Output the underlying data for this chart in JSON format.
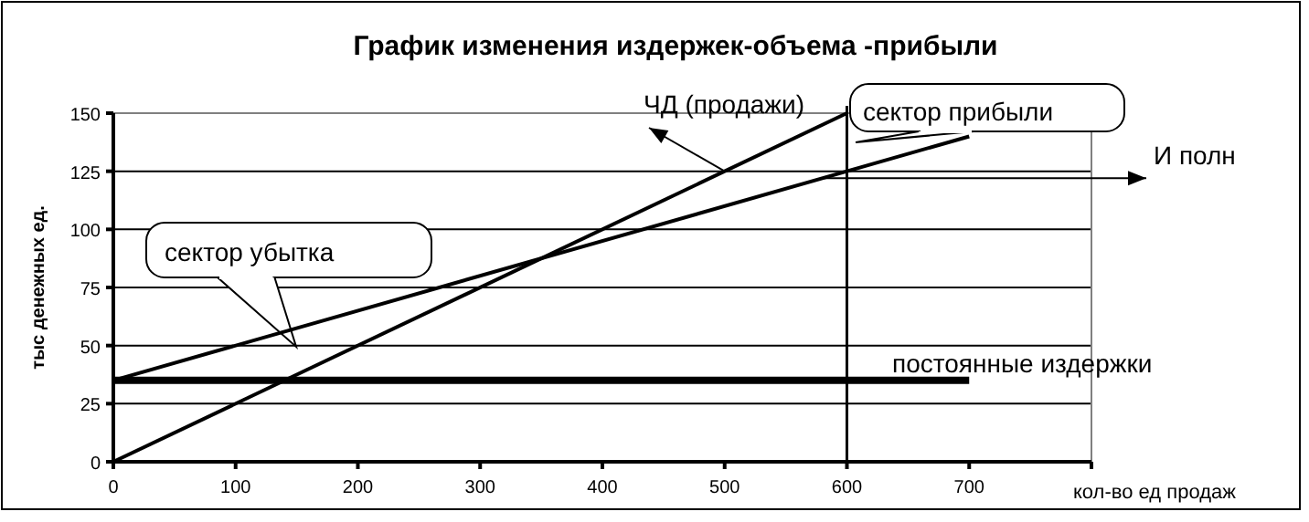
{
  "chart_data": {
    "type": "line",
    "title": "График изменения издержек-объема -прибыли",
    "xlabel": "кол-во ед продаж",
    "ylabel": "тыс денежных ед.",
    "series": [
      {
        "color": "#000000",
        "x": [
          0,
          600
        ],
        "values": [
          0,
          150
        ]
      },
      {
        "color": "#000000",
        "x": [
          0,
          700
        ],
        "values": [
          35,
          140
        ]
      },
      {
        "color": "#000000",
        "x": [
          0,
          700
        ],
        "values": [
          35,
          35
        ]
      }
    ],
    "xlim": [
      0,
      800
    ],
    "xticks": [
      0,
      100,
      200,
      300,
      400,
      500,
      600,
      700,
      {
        "value": 800,
        "label": null
      }
    ],
    "ylim": [
      0,
      150
    ],
    "yticks": [
      0,
      25,
      50,
      75,
      100,
      125,
      150
    ],
    "grid": "y",
    "marker": "none",
    "line_style": "solid",
    "ref_lines": [
      {
        "axis": "x",
        "value": 600,
        "color": "#000000"
      }
    ],
    "annotations": [
      {
        "text": "ЧД (продажи)",
        "x": 500,
        "y": 125
      },
      "сектор прибыли",
      {
        "text": "И полн",
        "x": 580,
        "y": 122
      },
      "сектор убытка",
      {
        "text": "постоянные издержки",
        "x": 700,
        "y": 35
      }
    ]
  }
}
